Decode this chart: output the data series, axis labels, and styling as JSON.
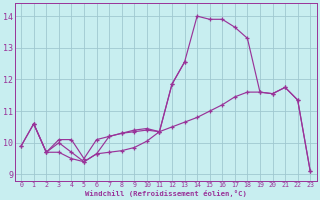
{
  "xlabel": "Windchill (Refroidissement éolien,°C)",
  "bg_color": "#c8eef0",
  "grid_color": "#a0c8d0",
  "line_color": "#993399",
  "xlim": [
    -0.5,
    23.5
  ],
  "ylim": [
    8.8,
    14.4
  ],
  "xticks": [
    0,
    1,
    2,
    3,
    4,
    5,
    6,
    7,
    8,
    9,
    10,
    11,
    12,
    13,
    14,
    15,
    16,
    17,
    18,
    19,
    20,
    21,
    22,
    23
  ],
  "yticks": [
    9,
    10,
    11,
    12,
    13,
    14
  ],
  "line1_x": [
    0,
    1,
    2,
    3,
    4,
    5,
    6,
    7,
    8,
    9,
    10,
    11,
    12,
    13,
    14,
    15,
    16,
    17,
    18,
    19,
    20,
    21,
    22,
    23
  ],
  "line1_y": [
    9.9,
    10.6,
    9.7,
    10.1,
    10.1,
    9.5,
    10.1,
    10.2,
    10.3,
    10.35,
    10.4,
    10.35,
    11.85,
    12.55,
    14.0,
    13.9,
    13.9,
    13.65,
    13.3,
    11.6,
    11.55,
    11.75,
    11.35,
    9.1
  ],
  "line2_x": [
    0,
    1,
    2,
    3,
    4,
    5,
    6,
    7,
    8,
    9,
    10,
    11,
    12,
    13,
    14,
    15,
    16,
    17,
    18,
    19,
    20,
    21,
    22,
    23
  ],
  "line2_y": [
    9.9,
    10.6,
    9.7,
    9.7,
    9.5,
    9.4,
    9.65,
    9.7,
    9.75,
    9.85,
    10.05,
    10.35,
    10.5,
    10.65,
    10.8,
    11.0,
    11.2,
    11.45,
    11.6,
    11.6,
    11.55,
    11.75,
    11.35,
    9.1
  ],
  "line3_x": [
    1,
    2,
    3,
    4,
    5,
    6,
    7,
    8,
    9,
    10,
    11,
    12,
    13
  ],
  "line3_y": [
    10.6,
    9.7,
    10.0,
    9.7,
    9.4,
    9.65,
    10.2,
    10.3,
    10.4,
    10.45,
    10.35,
    11.85,
    12.55
  ]
}
